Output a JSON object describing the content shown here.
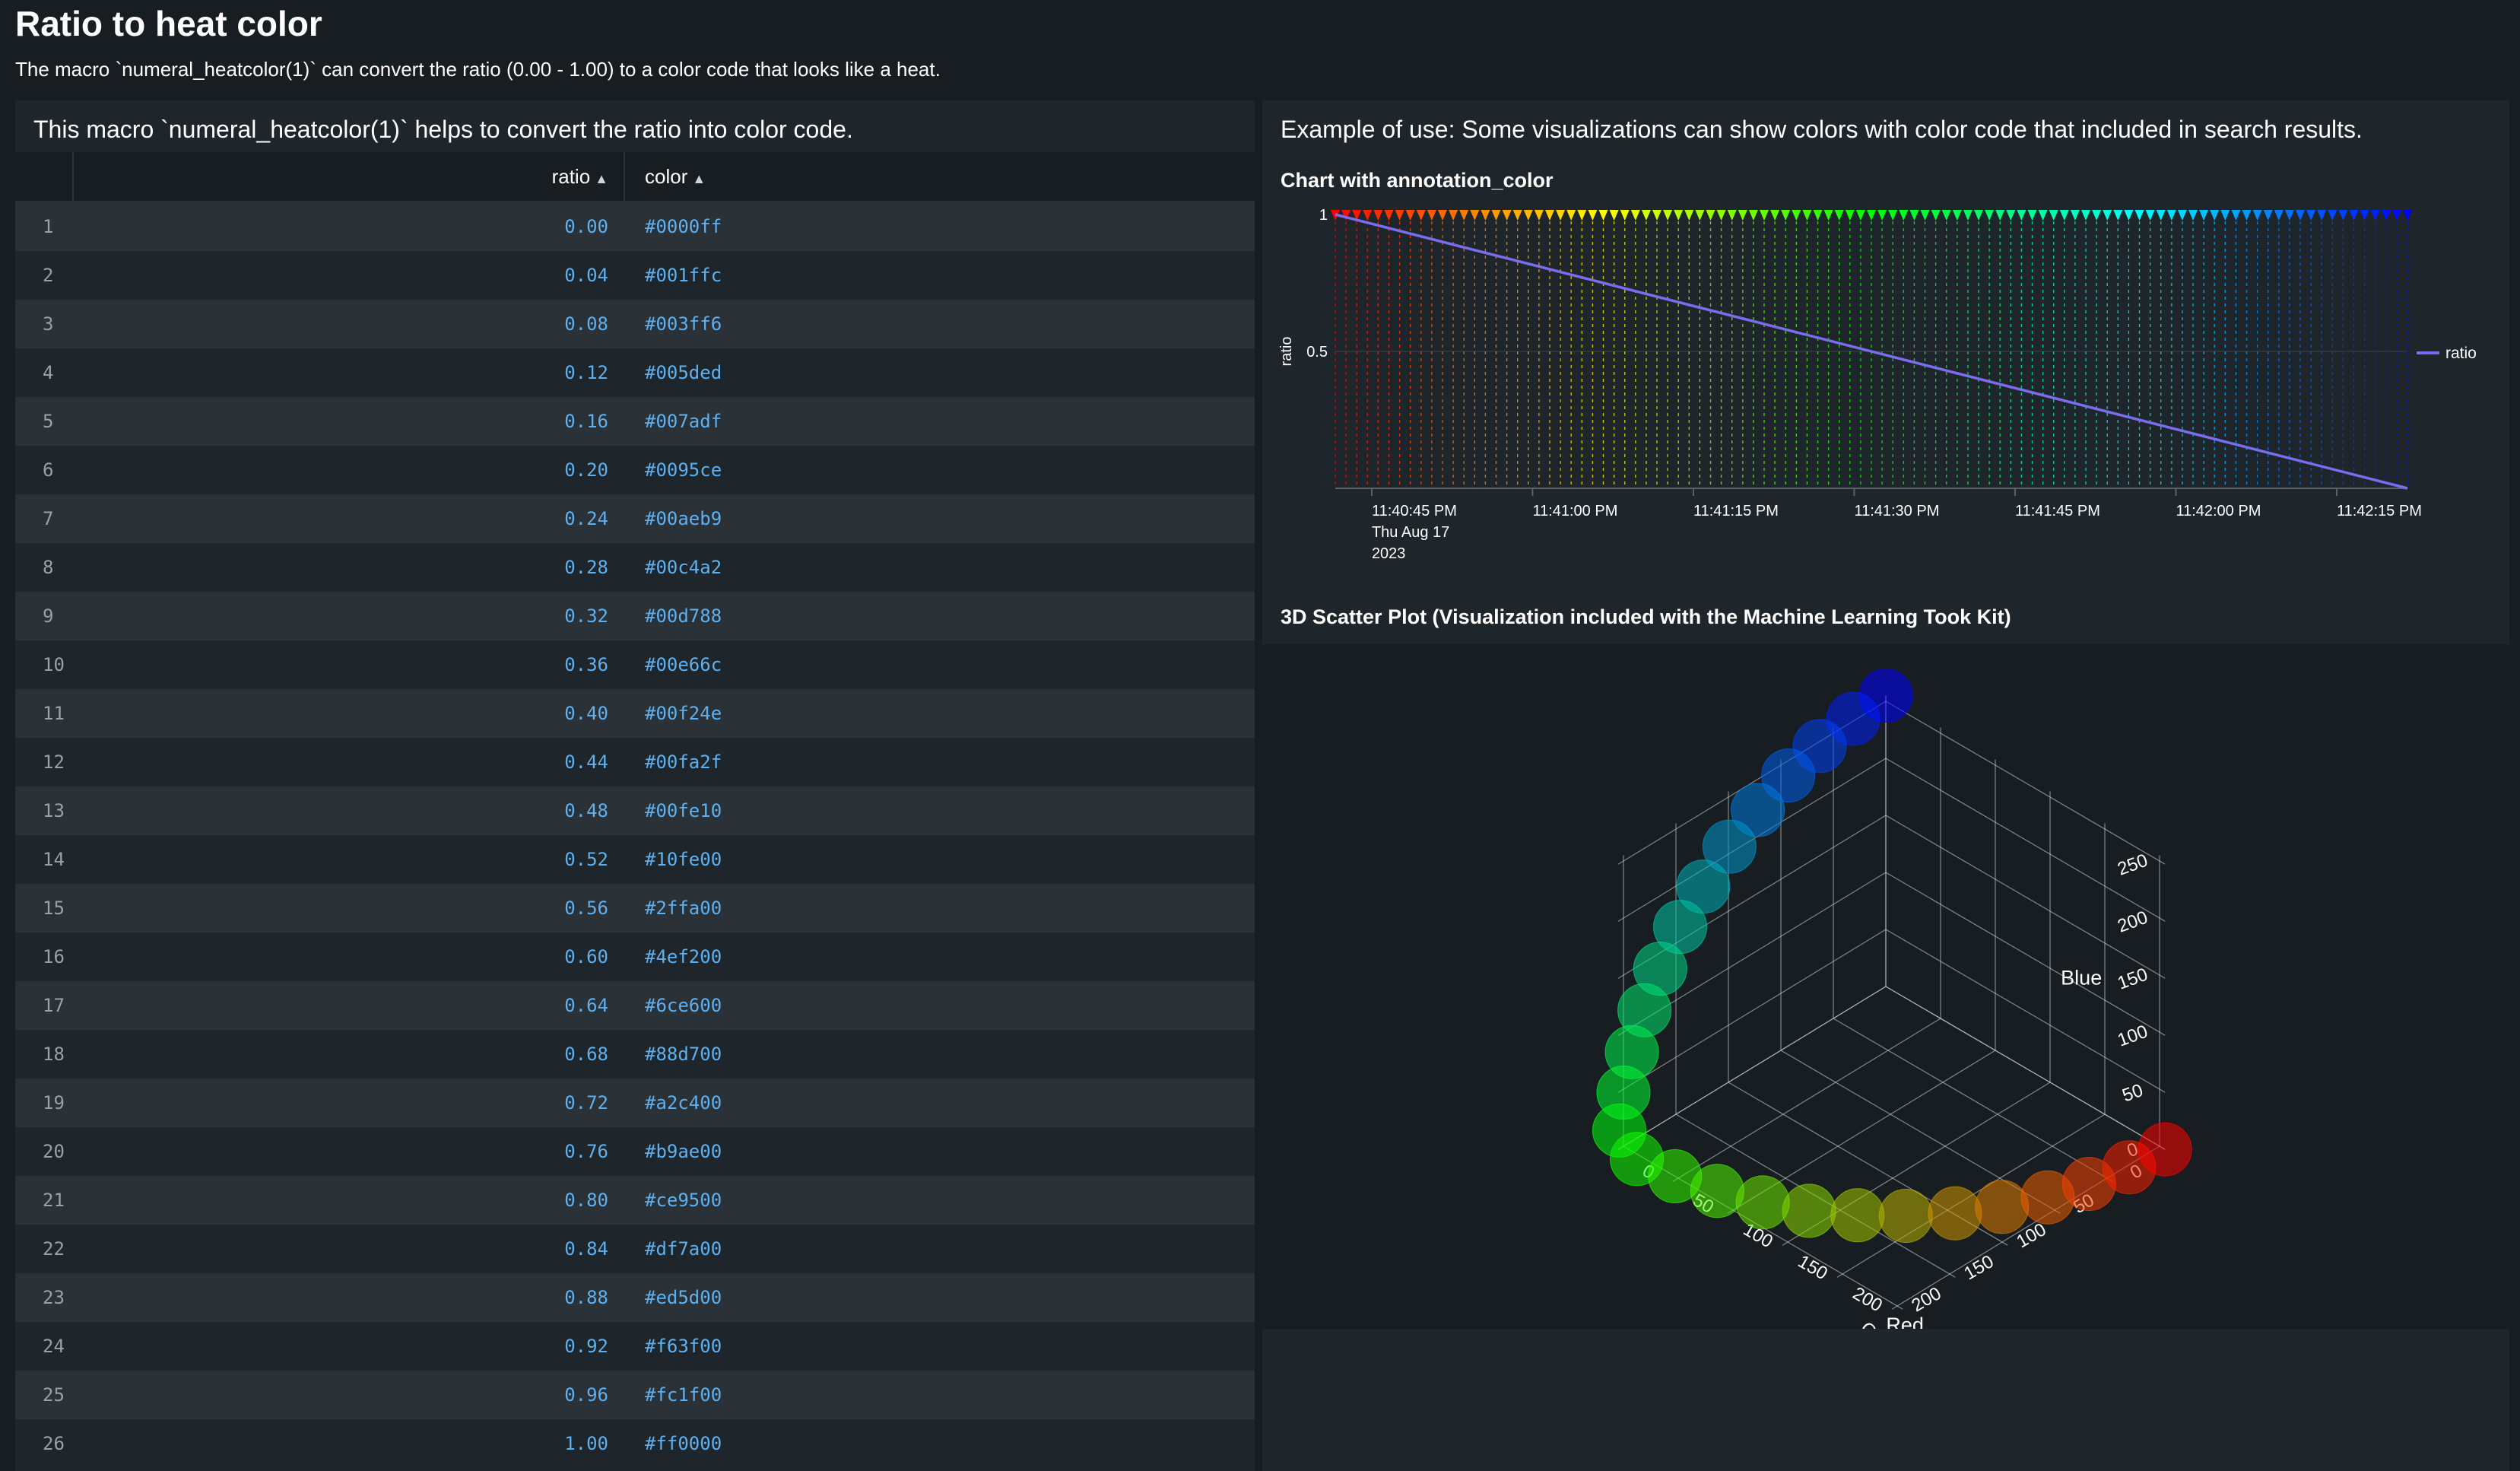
{
  "page": {
    "title": "Ratio to heat color",
    "description": "The macro `numeral_heatcolor(1)` can convert the ratio (0.00 - 1.00) to a color code that looks like a heat."
  },
  "table_panel": {
    "title": "This macro `numeral_heatcolor(1)` helps to convert the ratio into color code.",
    "columns": [
      {
        "label": "ratio",
        "sort_icon": "sort-arrows-icon"
      },
      {
        "label": "color",
        "sort_icon": "sort-arrows-icon"
      }
    ],
    "rows": [
      {
        "index": "1",
        "ratio": "0.00",
        "color": "#0000ff"
      },
      {
        "index": "2",
        "ratio": "0.04",
        "color": "#001ffc"
      },
      {
        "index": "3",
        "ratio": "0.08",
        "color": "#003ff6"
      },
      {
        "index": "4",
        "ratio": "0.12",
        "color": "#005ded"
      },
      {
        "index": "5",
        "ratio": "0.16",
        "color": "#007adf"
      },
      {
        "index": "6",
        "ratio": "0.20",
        "color": "#0095ce"
      },
      {
        "index": "7",
        "ratio": "0.24",
        "color": "#00aeb9"
      },
      {
        "index": "8",
        "ratio": "0.28",
        "color": "#00c4a2"
      },
      {
        "index": "9",
        "ratio": "0.32",
        "color": "#00d788"
      },
      {
        "index": "10",
        "ratio": "0.36",
        "color": "#00e66c"
      },
      {
        "index": "11",
        "ratio": "0.40",
        "color": "#00f24e"
      },
      {
        "index": "12",
        "ratio": "0.44",
        "color": "#00fa2f"
      },
      {
        "index": "13",
        "ratio": "0.48",
        "color": "#00fe10"
      },
      {
        "index": "14",
        "ratio": "0.52",
        "color": "#10fe00"
      },
      {
        "index": "15",
        "ratio": "0.56",
        "color": "#2ffa00"
      },
      {
        "index": "16",
        "ratio": "0.60",
        "color": "#4ef200"
      },
      {
        "index": "17",
        "ratio": "0.64",
        "color": "#6ce600"
      },
      {
        "index": "18",
        "ratio": "0.68",
        "color": "#88d700"
      },
      {
        "index": "19",
        "ratio": "0.72",
        "color": "#a2c400"
      },
      {
        "index": "20",
        "ratio": "0.76",
        "color": "#b9ae00"
      },
      {
        "index": "21",
        "ratio": "0.80",
        "color": "#ce9500"
      },
      {
        "index": "22",
        "ratio": "0.84",
        "color": "#df7a00"
      },
      {
        "index": "23",
        "ratio": "0.88",
        "color": "#ed5d00"
      },
      {
        "index": "24",
        "ratio": "0.92",
        "color": "#f63f00"
      },
      {
        "index": "25",
        "ratio": "0.96",
        "color": "#fc1f00"
      },
      {
        "index": "26",
        "ratio": "1.00",
        "color": "#ff0000"
      }
    ]
  },
  "example_panel": {
    "title": "Example of use: Some visualizations can show colors with color code that included in search results.",
    "line_chart_title": "Chart with annotation_color",
    "scatter_title": "3D Scatter Plot (Visualization included with the Machine Learning Took Kit)"
  },
  "chart_data": [
    {
      "type": "line",
      "title": "Chart with annotation_color",
      "ylabel": "ratio",
      "xlabel": "",
      "ylim": [
        0,
        1
      ],
      "y_ticks": [
        "1",
        "0.5"
      ],
      "x_ticks": [
        "11:40:45 PM",
        "11:41:00 PM",
        "11:41:15 PM",
        "11:41:30 PM",
        "11:41:45 PM",
        "11:42:00 PM",
        "11:42:15 PM"
      ],
      "x_first_tick_sublabel": [
        "Thu Aug 17",
        "2023"
      ],
      "x_range_seconds_after_start": [
        0,
        100
      ],
      "series": [
        {
          "name": "ratio",
          "color": "#7b6cf0",
          "x": [
            0,
            100
          ],
          "y": [
            1,
            0
          ]
        }
      ],
      "annotations": {
        "count": 101,
        "color_from": "#ff0000",
        "color_to": "#0000ff"
      },
      "legend": "right",
      "grid": true
    },
    {
      "type": "scatter",
      "title": "3D Scatter Plot (Visualization included with the Machine Learning Took Kit)",
      "axes": {
        "x": "Red",
        "y": "Green",
        "z": "Blue"
      },
      "tick_labels": {
        "red": [
          "0",
          "50",
          "100",
          "150",
          "200"
        ],
        "green": [
          "0",
          "50",
          "100",
          "150",
          "200"
        ],
        "blue": [
          "0",
          "50",
          "100",
          "150",
          "200",
          "250"
        ]
      },
      "axis_range": [
        0,
        255
      ],
      "points_from_table": true
    }
  ],
  "colors": {
    "background": "#171d21",
    "panel": "#1f262b",
    "row_alt": "#2a3137",
    "link_text": "#5fb0ee",
    "series_line": "#7b6cf0"
  }
}
